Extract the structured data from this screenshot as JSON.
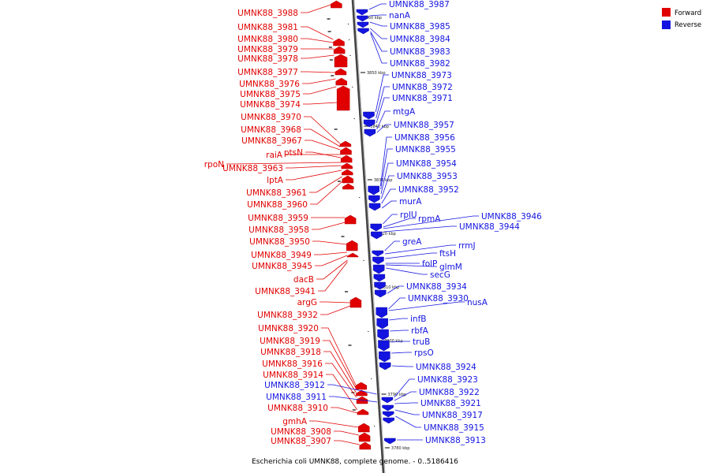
{
  "caption": "Escherichia coli UMNK88, complete genome. - 0..5186416",
  "legend": [
    {
      "label": "Forward",
      "color": "#e00000"
    },
    {
      "label": "Reverse",
      "color": "#1414e0"
    }
  ],
  "ticks": [
    "3860 kbp",
    "3850 kbp",
    "3840 kbp",
    "3830 kbp",
    "3820 kbp",
    "3810 kbp",
    "3800 kbp",
    "3790 kbp",
    "3780 kbp"
  ],
  "forward_labels": [
    "UMNK88_3988",
    "UMNK88_3981",
    "UMNK88_3980",
    "UMNK88_3979",
    "UMNK88_3978",
    "UMNK88_3977",
    "UMNK88_3976",
    "UMNK88_3975",
    "UMNK88_3974",
    "UMNK88_3970",
    "UMNK88_3968",
    "UMNK88_3967",
    "raiA",
    "ptsN",
    "rpoN",
    "UMNK88_3963",
    "lptA",
    "UMNK88_3961",
    "UMNK88_3960",
    "UMNK88_3959",
    "UMNK88_3958",
    "UMNK88_3950",
    "UMNK88_3949",
    "UMNK88_3945",
    "dacB",
    "UMNK88_3941",
    "argG",
    "UMNK88_3932",
    "UMNK88_3920",
    "UMNK88_3919",
    "UMNK88_3918",
    "UMNK88_3916",
    "UMNK88_3914",
    "UMNK88_3910",
    "gmhA",
    "UMNK88_3908",
    "UMNK88_3907"
  ],
  "reverse_labels": [
    "UMNK88_3987",
    "nanA",
    "UMNK88_3985",
    "UMNK88_3984",
    "UMNK88_3983",
    "UMNK88_3982",
    "UMNK88_3973",
    "UMNK88_3972",
    "UMNK88_3971",
    "mtgA",
    "UMNK88_3957",
    "UMNK88_3956",
    "UMNK88_3955",
    "UMNK88_3954",
    "UMNK88_3953",
    "UMNK88_3952",
    "murA",
    "rplU",
    "rpmA",
    "UMNK88_3946",
    "UMNK88_3944",
    "greA",
    "rrmJ",
    "ftsH",
    "folP",
    "glmM",
    "secG",
    "UMNK88_3934",
    "UMNK88_3930",
    "nusA",
    "infB",
    "rbfA",
    "truB",
    "rpsO",
    "UMNK88_3924",
    "UMNK88_3923",
    "UMNK88_3922",
    "UMNK88_3921",
    "UMNK88_3917",
    "UMNK88_3915",
    "UMNK88_3913",
    "UMNK88_3912",
    "UMNK88_3911"
  ]
}
